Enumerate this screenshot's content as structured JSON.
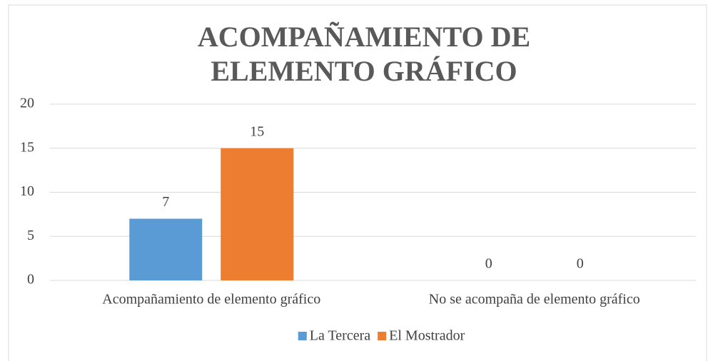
{
  "chart_data": {
    "type": "bar",
    "title": "ACOMPAÑAMIENTO DE ELEMENTO GRÁFICO",
    "categories": [
      "Acompañamiento de elemento gráfico",
      "No se acompaña de elemento gráfico"
    ],
    "series": [
      {
        "name": "La Tercera",
        "color": "#5b9bd5",
        "values": [
          7,
          0
        ]
      },
      {
        "name": "El Mostrador",
        "color": "#ed7d31",
        "values": [
          15,
          0
        ]
      }
    ],
    "ylim": [
      0,
      20
    ],
    "yticks": [
      0,
      5,
      10,
      15,
      20
    ],
    "grid": true,
    "legend": "bottom"
  }
}
